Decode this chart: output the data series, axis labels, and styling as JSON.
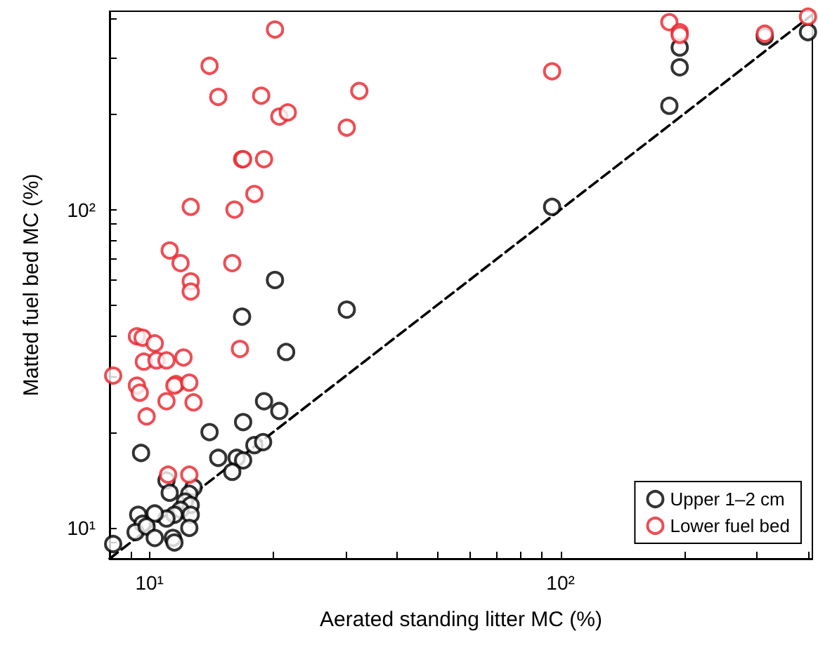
{
  "chart_data": {
    "type": "scatter",
    "xlabel": "Aerated standing litter MC (%)",
    "ylabel": "Matted fuel bed MC (%)",
    "log": "xy",
    "xlim": [
      8,
      410
    ],
    "ylim": [
      8,
      420
    ],
    "xticks": [
      {
        "value": 8,
        "label": null
      },
      {
        "value": 9,
        "label": null
      },
      {
        "value": 10,
        "label": "10¹"
      },
      {
        "value": 20,
        "label": null
      },
      {
        "value": 30,
        "label": null
      },
      {
        "value": 40,
        "label": null
      },
      {
        "value": 50,
        "label": null
      },
      {
        "value": 60,
        "label": null
      },
      {
        "value": 70,
        "label": null
      },
      {
        "value": 80,
        "label": null
      },
      {
        "value": 90,
        "label": null
      },
      {
        "value": 100,
        "label": "10²"
      },
      {
        "value": 200,
        "label": null
      },
      {
        "value": 300,
        "label": null
      },
      {
        "value": 400,
        "label": null
      }
    ],
    "yticks": [
      {
        "value": 8,
        "label": null
      },
      {
        "value": 9,
        "label": null
      },
      {
        "value": 10,
        "label": "10¹"
      },
      {
        "value": 20,
        "label": null
      },
      {
        "value": 30,
        "label": null
      },
      {
        "value": 40,
        "label": null
      },
      {
        "value": 50,
        "label": null
      },
      {
        "value": 60,
        "label": null
      },
      {
        "value": 70,
        "label": null
      },
      {
        "value": 80,
        "label": null
      },
      {
        "value": 90,
        "label": null
      },
      {
        "value": 100,
        "label": "10²"
      },
      {
        "value": 200,
        "label": null
      },
      {
        "value": 300,
        "label": null
      },
      {
        "value": 400,
        "label": null
      }
    ],
    "grid": false,
    "legend": "bottom right",
    "marker": "circle",
    "series": [
      {
        "name": "Upper 1–2 cm",
        "color": "#000000",
        "x": [
          16.8,
          21.5,
          19.0,
          20.7,
          16.9,
          14.0,
          9.54,
          14.7,
          16.3,
          16.9,
          18.0,
          18.9,
          15.9,
          11.0,
          11.2,
          12.8,
          12.5,
          12.2,
          12.6,
          11.9,
          11.5,
          12.6,
          11.0,
          10.3,
          9.39,
          9.62,
          9.25,
          9.84,
          10.3,
          11.4,
          11.5,
          12.5,
          8.16,
          20.2,
          30.2,
          95.4,
          184,
          195,
          195,
          314,
          400
        ],
        "values": [
          46.1,
          35.7,
          25.0,
          23.3,
          21.5,
          20.0,
          17.2,
          16.6,
          16.6,
          16.3,
          18.2,
          18.6,
          15.0,
          14.1,
          12.9,
          13.4,
          12.8,
          12.1,
          11.8,
          11.4,
          11.0,
          11.0,
          10.7,
          11.1,
          11.0,
          10.3,
          9.7,
          10.1,
          9.3,
          9.3,
          9.0,
          10.0,
          8.9,
          60.1,
          48.5,
          102,
          212,
          280,
          323,
          350,
          361
        ]
      },
      {
        "name": "Lower fuel bed",
        "color": "#e8222a",
        "x": [
          20.2,
          14.0,
          14.7,
          18.7,
          20.7,
          21.7,
          32.4,
          30.2,
          16.8,
          16.9,
          19.0,
          18.0,
          12.6,
          16.1,
          11.2,
          11.9,
          15.9,
          12.6,
          12.6,
          9.32,
          9.62,
          10.3,
          8.16,
          9.69,
          10.4,
          11.0,
          12.1,
          9.32,
          9.47,
          11.6,
          11.5,
          12.5,
          11.0,
          12.8,
          9.84,
          11.1,
          12.5,
          16.6,
          95.4,
          184,
          195,
          195,
          314,
          400
        ],
        "values": [
          368,
          283,
          226,
          228,
          196,
          202,
          236,
          181,
          144,
          144,
          144,
          112,
          102,
          100,
          74.4,
          67.9,
          67.9,
          59.5,
          55.3,
          40.0,
          39.6,
          38.0,
          30.1,
          33.3,
          33.6,
          33.6,
          34.3,
          28.0,
          26.6,
          28.3,
          28.0,
          28.6,
          25.0,
          24.8,
          22.4,
          14.7,
          14.7,
          36.5,
          272,
          388,
          361,
          354,
          357,
          404
        ]
      },
      {
        "type": "line",
        "color": "#000000",
        "line_style": "dashed",
        "marker": "none",
        "x": [
          8,
          410
        ],
        "values": [
          8,
          410
        ]
      }
    ]
  }
}
